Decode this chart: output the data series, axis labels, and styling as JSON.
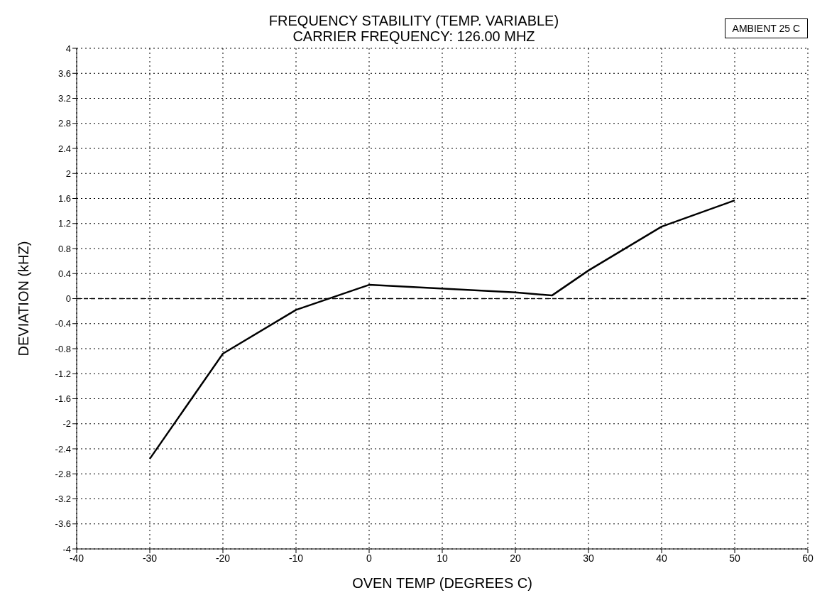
{
  "chart_data": {
    "type": "line",
    "title": "FREQUENCY STABILITY (TEMP. VARIABLE)",
    "subtitle": "CARRIER FREQUENCY: 126.00 MHZ",
    "xlabel": "OVEN TEMP (DEGREES C)",
    "ylabel": "DEVIATION (kHZ)",
    "annotations": [
      "AMBIENT 25 C"
    ],
    "x": [
      -30,
      -20,
      -10,
      0,
      20,
      25,
      30,
      40,
      50
    ],
    "series": [
      {
        "color": "#000000",
        "values": [
          -2.56,
          -0.88,
          -0.18,
          0.22,
          0.1,
          0.05,
          0.45,
          1.15,
          1.57
        ]
      }
    ],
    "xlim": [
      -40,
      60
    ],
    "xticks": [
      -40,
      -30,
      -20,
      -10,
      0,
      10,
      20,
      30,
      40,
      50,
      60
    ],
    "ylim": [
      -4,
      4
    ],
    "yticks": [
      -4,
      -3.6,
      -3.2,
      -2.8,
      -2.4,
      -2,
      -1.6,
      -1.2,
      -0.8,
      -0.4,
      0,
      0.4,
      0.8,
      1.2,
      1.6,
      2,
      2.4,
      2.8,
      3.2,
      3.6,
      4
    ],
    "ref_lines": [
      {
        "axis": "y",
        "value": 0,
        "line_style": "dashed",
        "color": "#000000"
      }
    ],
    "grid": true,
    "line_style": "solid"
  }
}
